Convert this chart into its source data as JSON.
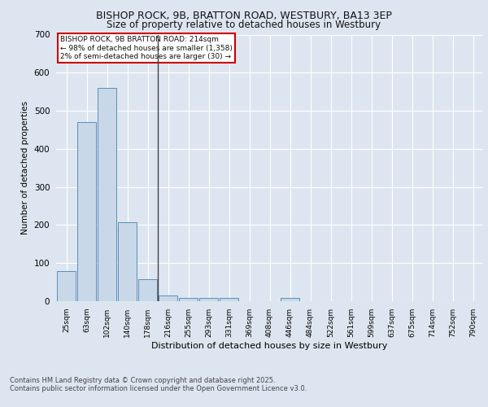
{
  "title_line1": "BISHOP ROCK, 9B, BRATTON ROAD, WESTBURY, BA13 3EP",
  "title_line2": "Size of property relative to detached houses in Westbury",
  "xlabel": "Distribution of detached houses by size in Westbury",
  "ylabel": "Number of detached properties",
  "categories": [
    "25sqm",
    "63sqm",
    "102sqm",
    "140sqm",
    "178sqm",
    "216sqm",
    "255sqm",
    "293sqm",
    "331sqm",
    "369sqm",
    "408sqm",
    "446sqm",
    "484sqm",
    "522sqm",
    "561sqm",
    "599sqm",
    "637sqm",
    "675sqm",
    "714sqm",
    "752sqm",
    "790sqm"
  ],
  "values": [
    80,
    470,
    560,
    207,
    57,
    14,
    9,
    9,
    9,
    0,
    0,
    8,
    0,
    0,
    0,
    0,
    0,
    0,
    0,
    0,
    0
  ],
  "bar_color": "#c8d8e8",
  "bar_edge_color": "#5b8db8",
  "background_color": "#dde6f0",
  "grid_color": "#ffffff",
  "annotation_text": "BISHOP ROCK, 9B BRATTON ROAD: 214sqm\n← 98% of detached houses are smaller (1,358)\n2% of semi-detached houses are larger (30) →",
  "annotation_box_color": "#ffffff",
  "annotation_border_color": "#cc0000",
  "vline_x_index": 5,
  "vline_color": "#444444",
  "ylim": [
    0,
    700
  ],
  "yticks": [
    0,
    100,
    200,
    300,
    400,
    500,
    600,
    700
  ],
  "footer_line1": "Contains HM Land Registry data © Crown copyright and database right 2025.",
  "footer_line2": "Contains public sector information licensed under the Open Government Licence v3.0."
}
